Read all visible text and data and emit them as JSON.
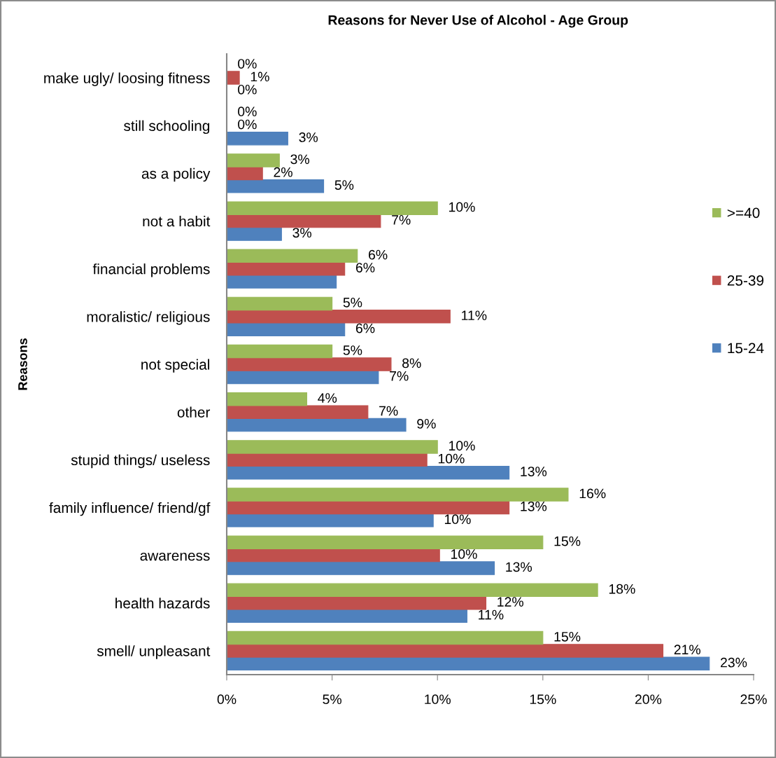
{
  "chart_data": {
    "type": "bar",
    "orientation": "horizontal",
    "title": "Reasons for Never Use of Alcohol - Age Group",
    "ylabel": "Reasons",
    "categories": [
      "make ugly/ loosing fitness",
      "still schooling",
      "as a policy",
      "not a habit",
      "financial problems",
      "moralistic/ religious",
      "not special",
      "other",
      "stupid things/ useless",
      "family influence/ friend/gf",
      "awareness",
      "health hazards",
      "smell/ unpleasant"
    ],
    "series": [
      {
        "name": "15-24",
        "color": "#4f81bd",
        "values": [
          0,
          2.9,
          4.6,
          2.6,
          5.2,
          5.6,
          7.2,
          8.5,
          13.4,
          9.8,
          12.7,
          11.4,
          22.9
        ],
        "value_labels": [
          "0%",
          "3%",
          "5%",
          "3%",
          null,
          "6%",
          "7%",
          "9%",
          "13%",
          "10%",
          "13%",
          "11%",
          "23%"
        ]
      },
      {
        "name": "25-39",
        "color": "#c0504d",
        "values": [
          0.6,
          0,
          1.7,
          7.3,
          5.6,
          10.6,
          7.8,
          6.7,
          9.5,
          13.4,
          10.1,
          12.3,
          20.7
        ],
        "value_labels": [
          "1%",
          "0%",
          "2%",
          "7%",
          "6%",
          "11%",
          "8%",
          "7%",
          "10%",
          "13%",
          "10%",
          "12%",
          "21%"
        ]
      },
      {
        "name": ">=40",
        "color": "#9bbb59",
        "values": [
          0,
          0,
          2.5,
          10.0,
          6.2,
          5.0,
          5.0,
          3.8,
          10.0,
          16.2,
          15.0,
          17.6,
          15.0
        ],
        "value_labels": [
          "0%",
          "0%",
          "3%",
          "10%",
          "6%",
          "5%",
          "5%",
          "4%",
          "10%",
          "16%",
          "15%",
          "18%",
          "15%"
        ]
      }
    ],
    "xlim": [
      0,
      25
    ],
    "xticks": [
      {
        "value": 0,
        "label": "0%"
      },
      {
        "value": 5,
        "label": "5%"
      },
      {
        "value": 10,
        "label": "10%"
      },
      {
        "value": 15,
        "label": "15%"
      },
      {
        "value": 20,
        "label": "20%"
      },
      {
        "value": 25,
        "label": "25%"
      }
    ],
    "legend": "right"
  }
}
